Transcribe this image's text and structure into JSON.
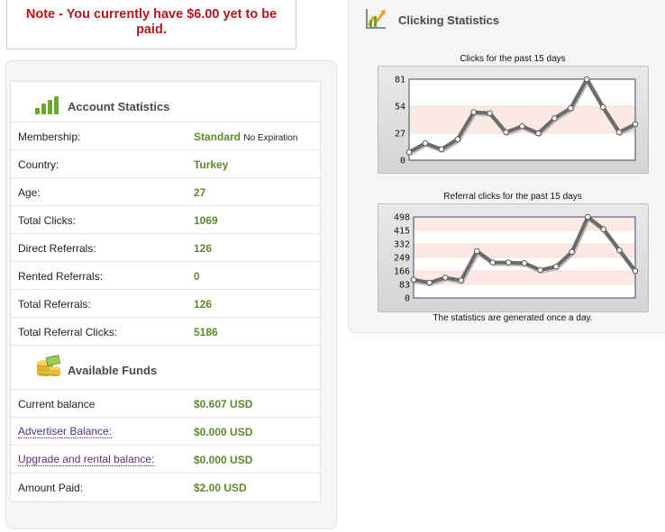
{
  "note": {
    "text": "Note - You currently have $6.00 yet to be paid."
  },
  "account": {
    "title": "Account Statistics",
    "rows": [
      {
        "label": "Membership:",
        "value": "Standard",
        "sub": "No Expiration"
      },
      {
        "label": "Country:",
        "value": "Turkey"
      },
      {
        "label": "Age:",
        "value": "27"
      },
      {
        "label": "Total Clicks:",
        "value": "1069"
      },
      {
        "label": "Direct Referrals:",
        "value": "126"
      },
      {
        "label": "Rented Referrals:",
        "value": "0"
      },
      {
        "label": "Total Referrals:",
        "value": "126"
      },
      {
        "label": "Total Referral Clicks:",
        "value": "5186"
      }
    ]
  },
  "funds": {
    "title": "Available Funds",
    "rows": [
      {
        "label": "Current balance",
        "value": "$0.607 USD"
      },
      {
        "label": "Advertiser Balance:",
        "value": "$0.000 USD"
      },
      {
        "label": "Upgrade and rental balance:",
        "value": "$0.000 USD"
      },
      {
        "label": "Amount Paid:",
        "value": "$2.00 USD"
      }
    ]
  },
  "clicking": {
    "title": "Clicking Statistics",
    "footer": "The statistics are generated once a day."
  },
  "colors": {
    "value_green": "#5d8a2a",
    "note_red": "#b5161b",
    "line": "#6b6b6b",
    "band": "#fde9e3"
  },
  "chart_data": [
    {
      "type": "line",
      "title": "Clicks for the past 15 days",
      "yticks": [
        0,
        27,
        54,
        81
      ],
      "ylim": [
        0,
        81
      ],
      "values": [
        8,
        17,
        11,
        21,
        48,
        47,
        28,
        34,
        27,
        42,
        52,
        81,
        53,
        28,
        36
      ]
    },
    {
      "type": "line",
      "title": "Referral clicks for the past 15 days",
      "yticks": [
        0,
        83,
        166,
        249,
        332,
        415,
        498
      ],
      "ylim": [
        0,
        498
      ],
      "values": [
        112,
        94,
        125,
        108,
        288,
        218,
        218,
        214,
        172,
        193,
        283,
        498,
        422,
        293,
        166
      ]
    }
  ]
}
